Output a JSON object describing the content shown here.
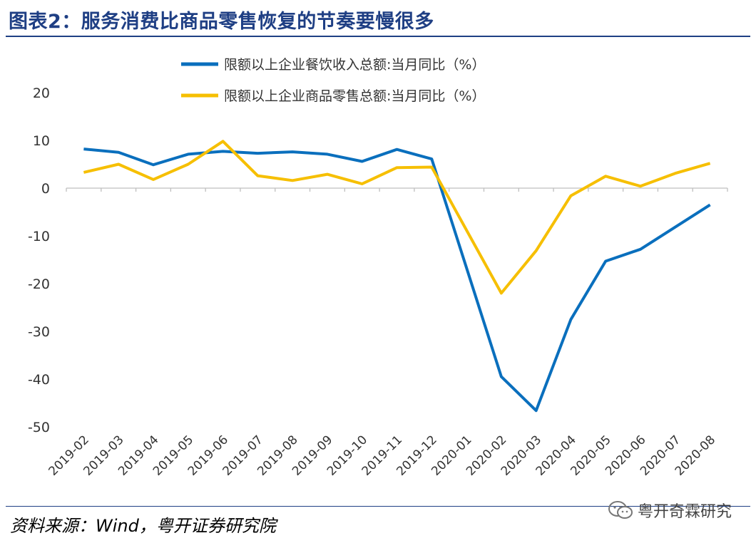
{
  "header": {
    "title": "图表2：服务消费比商品零售恢复的节奏要慢很多"
  },
  "footer": {
    "source": "资料来源：Wind，粤开证券研究院",
    "watermark": "粤开奇霖研究",
    "watermark_icon": "wechat-icon"
  },
  "chart_data": {
    "type": "line",
    "title": "图表2：服务消费比商品零售恢复的节奏要慢很多",
    "xlabel": "",
    "ylabel": "",
    "ylim": [
      -50,
      20
    ],
    "yticks": [
      "20",
      "10",
      "0",
      "-10",
      "-20",
      "-30",
      "-40",
      "-50"
    ],
    "grid": false,
    "legend_position": "top-center",
    "categories": [
      "2019-02",
      "2019-03",
      "2019-04",
      "2019-05",
      "2019-06",
      "2019-07",
      "2019-08",
      "2019-09",
      "2019-10",
      "2019-11",
      "2019-12",
      "2020-01",
      "2020-02",
      "2020-03",
      "2020-04",
      "2020-05",
      "2020-06",
      "2020-07",
      "2020-08"
    ],
    "series": [
      {
        "name": "限额以上企业餐饮收入总额:当月同比（%）",
        "color": "#0a6fbd",
        "values": [
          8.2,
          7.5,
          4.9,
          7.1,
          7.7,
          7.3,
          7.6,
          7.1,
          5.6,
          8.1,
          6.1,
          null,
          -39.5,
          -46.6,
          -27.5,
          -15.3,
          -12.8,
          null,
          -3.5
        ]
      },
      {
        "name": "限额以上企业商品零售总额:当月同比（%）",
        "color": "#f6bf00",
        "values": [
          3.3,
          5.0,
          1.8,
          5.0,
          9.8,
          2.6,
          1.6,
          2.9,
          0.9,
          4.3,
          4.4,
          null,
          -22.0,
          -13.1,
          -1.6,
          2.5,
          0.4,
          3.1,
          5.2
        ]
      }
    ]
  }
}
